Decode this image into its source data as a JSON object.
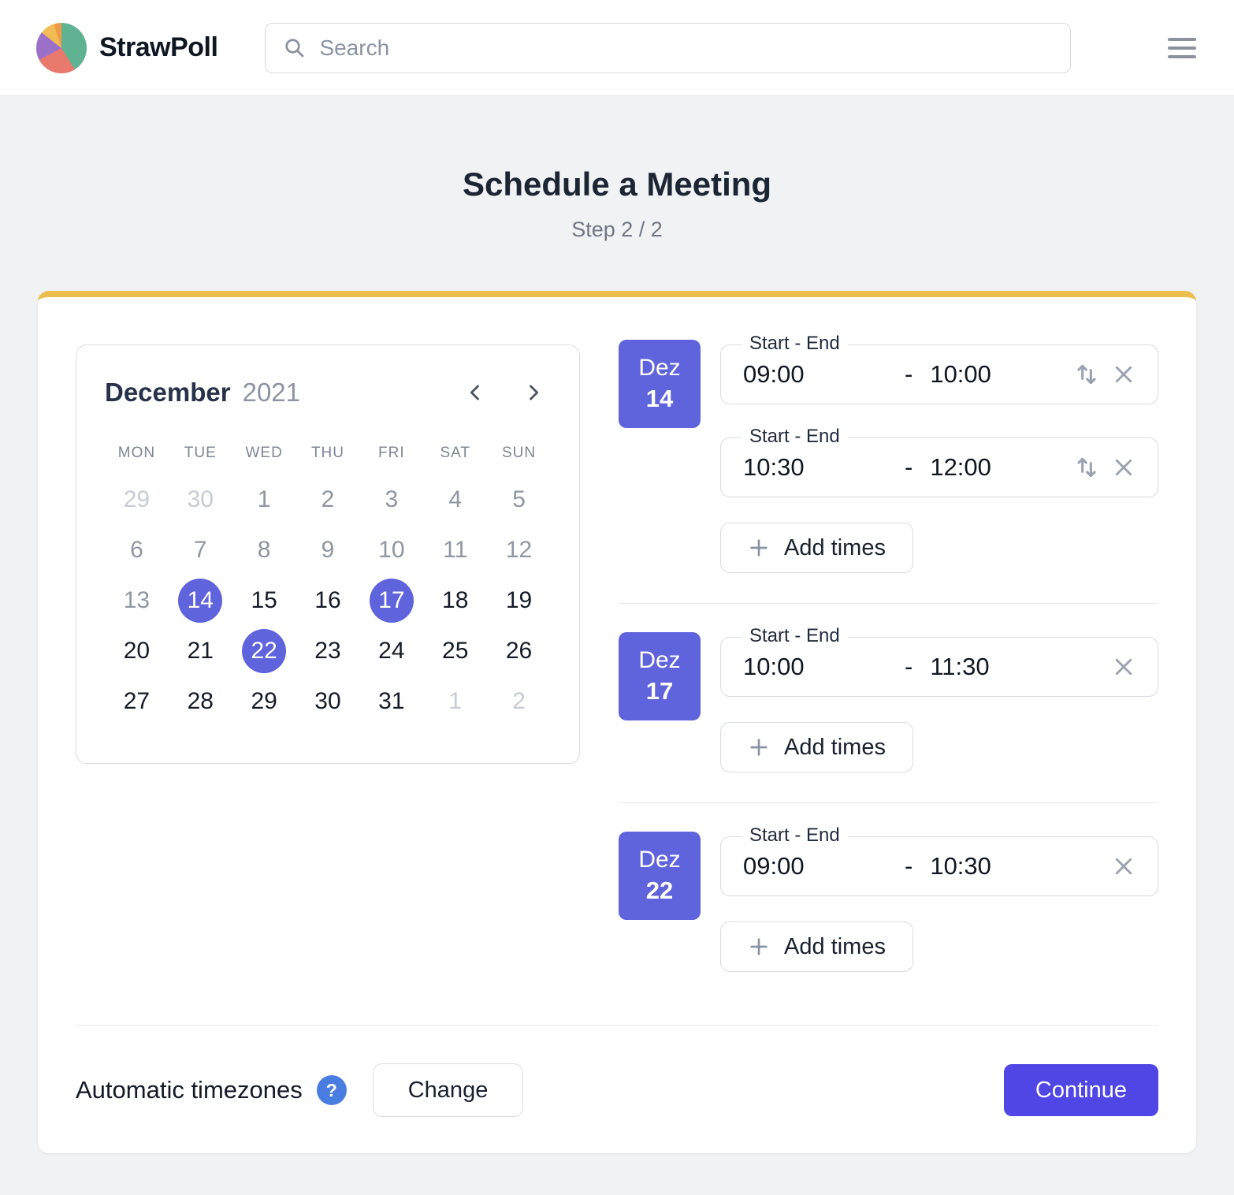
{
  "colors": {
    "accent": "#5F63DC",
    "btn": "#4F46E5",
    "topbar": "#ECBE4D",
    "help": "#4A7DE2",
    "logo-green": "#5FB393",
    "logo-salmon": "#E8796C",
    "logo-purple": "#9C6FC9",
    "logo-yellow": "#F2BC54",
    "logo-orange": "#F09A47"
  },
  "header": {
    "brand": "StrawPoll",
    "search": {
      "placeholder": "Search"
    }
  },
  "page": {
    "title": "Schedule a Meeting",
    "step": "Step 2 / 2"
  },
  "calendar": {
    "month": "December",
    "year": "2021",
    "weekdays": [
      "MON",
      "TUE",
      "WED",
      "THU",
      "FRI",
      "SAT",
      "SUN"
    ],
    "cells": [
      {
        "d": "29",
        "state": "outside"
      },
      {
        "d": "30",
        "state": "outside"
      },
      {
        "d": "1",
        "state": "muted"
      },
      {
        "d": "2",
        "state": "muted"
      },
      {
        "d": "3",
        "state": "muted"
      },
      {
        "d": "4",
        "state": "muted"
      },
      {
        "d": "5",
        "state": "muted"
      },
      {
        "d": "6",
        "state": "muted"
      },
      {
        "d": "7",
        "state": "muted"
      },
      {
        "d": "8",
        "state": "muted"
      },
      {
        "d": "9",
        "state": "muted"
      },
      {
        "d": "10",
        "state": "muted"
      },
      {
        "d": "11",
        "state": "muted"
      },
      {
        "d": "12",
        "state": "muted"
      },
      {
        "d": "13",
        "state": "muted"
      },
      {
        "d": "14",
        "state": "selected"
      },
      {
        "d": "15",
        "state": "normal"
      },
      {
        "d": "16",
        "state": "normal"
      },
      {
        "d": "17",
        "state": "selected"
      },
      {
        "d": "18",
        "state": "normal"
      },
      {
        "d": "19",
        "state": "normal"
      },
      {
        "d": "20",
        "state": "normal"
      },
      {
        "d": "21",
        "state": "normal"
      },
      {
        "d": "22",
        "state": "selected"
      },
      {
        "d": "23",
        "state": "normal"
      },
      {
        "d": "24",
        "state": "normal"
      },
      {
        "d": "25",
        "state": "normal"
      },
      {
        "d": "26",
        "state": "normal"
      },
      {
        "d": "27",
        "state": "normal"
      },
      {
        "d": "28",
        "state": "normal"
      },
      {
        "d": "29",
        "state": "normal"
      },
      {
        "d": "30",
        "state": "normal"
      },
      {
        "d": "31",
        "state": "normal"
      },
      {
        "d": "1",
        "state": "outside"
      },
      {
        "d": "2",
        "state": "outside"
      }
    ]
  },
  "days": [
    {
      "month": "Dez",
      "day": "14",
      "add_label": "Add times",
      "slots": [
        {
          "label": "Start - End",
          "start": "09:00",
          "separator": "-",
          "end": "10:00"
        },
        {
          "label": "Start - End",
          "start": "10:30",
          "separator": "-",
          "end": "12:00"
        }
      ]
    },
    {
      "month": "Dez",
      "day": "17",
      "add_label": "Add times",
      "slots": [
        {
          "label": "Start - End",
          "start": "10:00",
          "separator": "-",
          "end": "11:30"
        }
      ]
    },
    {
      "month": "Dez",
      "day": "22",
      "add_label": "Add times",
      "slots": [
        {
          "label": "Start - End",
          "start": "09:00",
          "separator": "-",
          "end": "10:30"
        }
      ]
    }
  ],
  "footer": {
    "timezone_label": "Automatic timezones",
    "help_glyph": "?",
    "change_label": "Change",
    "continue_label": "Continue"
  }
}
